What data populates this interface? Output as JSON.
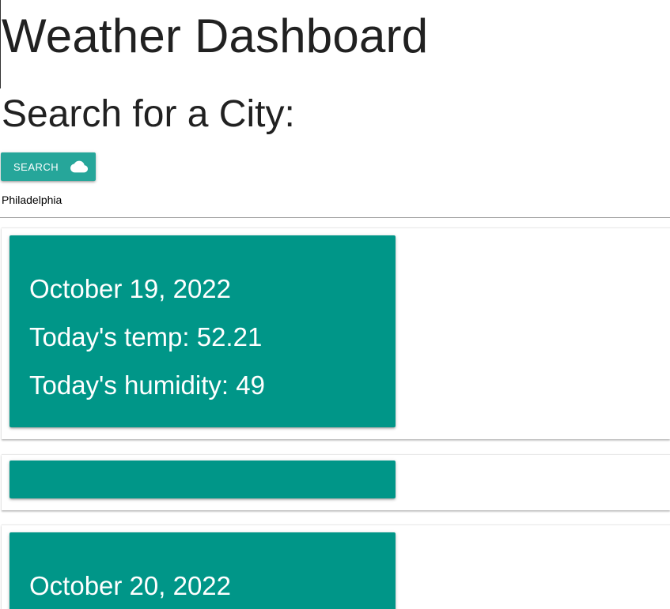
{
  "header": {
    "title": "Weather Dashboard",
    "subtitle": "Search for a City:"
  },
  "search": {
    "button_label": "SEARCH",
    "button_icon": "cloud-icon",
    "city_value": "Philadelphia"
  },
  "colors": {
    "button": "#26a69a",
    "card": "#009688"
  },
  "cards": [
    {
      "date": "October 19, 2022",
      "temp": "Today's temp: 52.21",
      "humidity": "Today's humidity: 49"
    },
    {
      "date": "",
      "temp": "",
      "humidity": ""
    },
    {
      "date": "October 20, 2022"
    }
  ]
}
